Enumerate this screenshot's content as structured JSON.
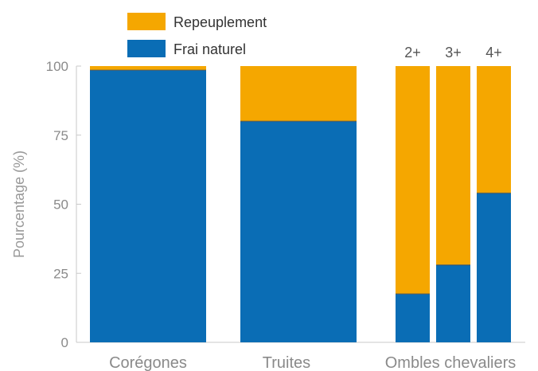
{
  "chart_data": {
    "type": "bar",
    "stacked": true,
    "ylabel": "Pourcentage (%)",
    "ylim": [
      0,
      100
    ],
    "yticks": [
      0,
      25,
      50,
      75,
      100
    ],
    "legend": {
      "position": "top-left",
      "entries": [
        {
          "name": "Repeuplement",
          "color": "#f5a700"
        },
        {
          "name": "Frai naturel",
          "color": "#0a6db5"
        }
      ]
    },
    "groups": [
      {
        "label": "Corégones",
        "bars": [
          {
            "sublabel": "",
            "frai_naturel": 98.5,
            "repeuplement": 1.5
          }
        ]
      },
      {
        "label": "Truites",
        "bars": [
          {
            "sublabel": "",
            "frai_naturel": 80,
            "repeuplement": 20
          }
        ]
      },
      {
        "label": "Ombles chevaliers",
        "bars": [
          {
            "sublabel": "2+",
            "frai_naturel": 17.5,
            "repeuplement": 82.5
          },
          {
            "sublabel": "3+",
            "frai_naturel": 28,
            "repeuplement": 72
          },
          {
            "sublabel": "4+",
            "frai_naturel": 54,
            "repeuplement": 46
          }
        ]
      }
    ],
    "series": [
      {
        "name": "Frai naturel",
        "color": "#0a6db5"
      },
      {
        "name": "Repeuplement",
        "color": "#f5a700"
      }
    ],
    "grid": false
  }
}
